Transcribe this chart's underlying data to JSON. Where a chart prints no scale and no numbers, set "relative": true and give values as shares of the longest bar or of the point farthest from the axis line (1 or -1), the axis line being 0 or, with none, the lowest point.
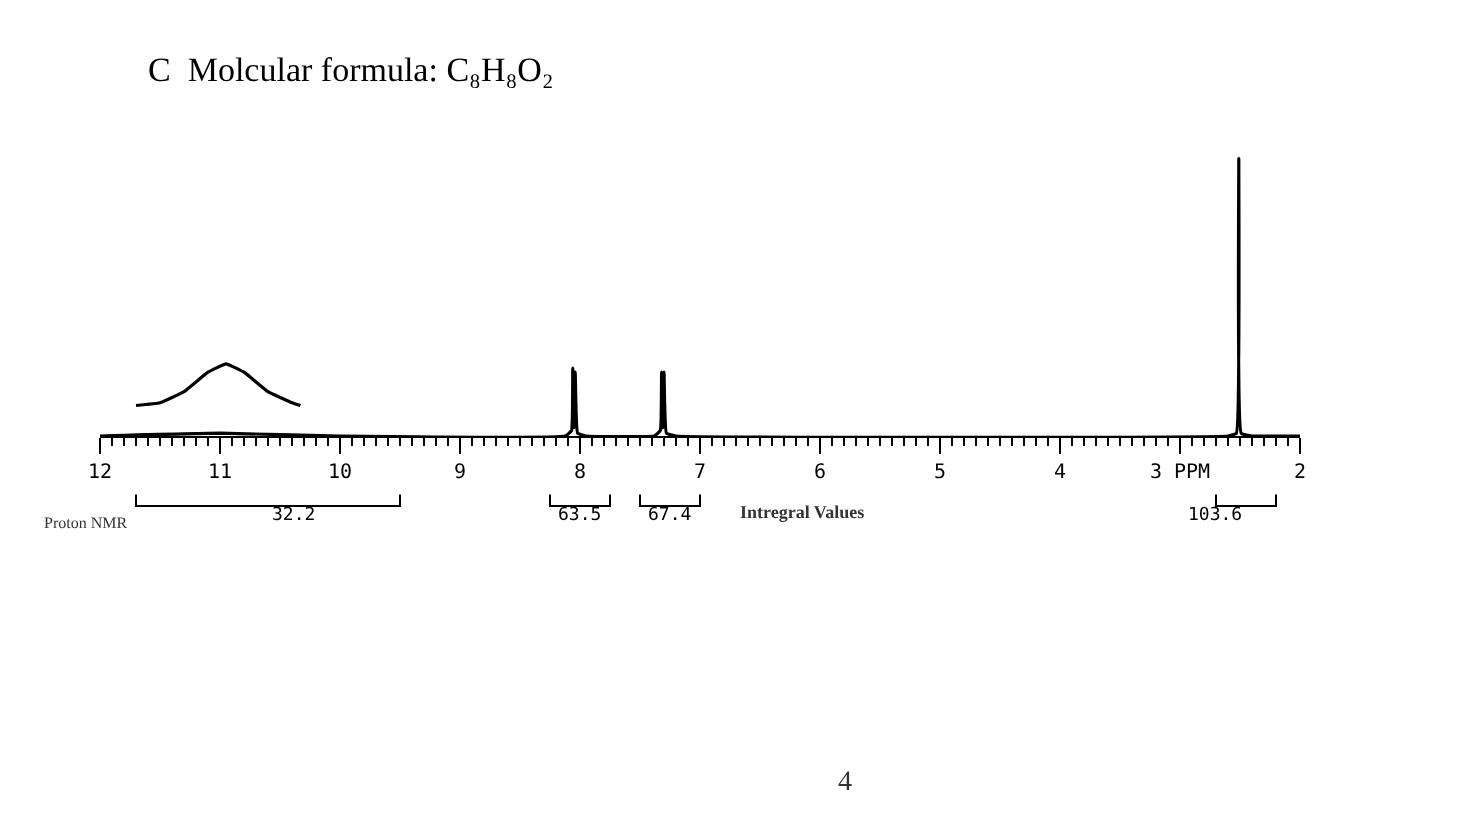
{
  "chart_data": {
    "type": "line",
    "title": "C  Molcular formula: C₈H₈O₂",
    "relative": true,
    "marker": "none",
    "xlim": [
      12,
      2
    ],
    "xticks": [
      12,
      11,
      10,
      9,
      8,
      7,
      6,
      5,
      4,
      {
        "value": 3,
        "label": "3 PPM"
      },
      2
    ],
    "series": [
      {
        "color": "#000000",
        "x": [
          12,
          11,
          10,
          8.12,
          8.07,
          8.06,
          8.05,
          8.04,
          8.02,
          7.95,
          7.38,
          7.33,
          7.32,
          7.31,
          7.3,
          7.28,
          7.2,
          2.6,
          2.53,
          2.51,
          2.49,
          2.4,
          2
        ],
        "values": [
          0,
          0.01,
          0,
          0,
          0.02,
          0.245,
          0.03,
          0.23,
          0.01,
          0,
          0,
          0.02,
          0.23,
          0.03,
          0.23,
          0.01,
          0,
          0,
          0.01,
          1,
          0.01,
          0,
          0
        ]
      },
      {
        "color": "#000000",
        "x": [
          11.7,
          11.5,
          11.3,
          11.1,
          10.95,
          10.8,
          10.6,
          10.4,
          10.33
        ],
        "values": [
          0.11,
          0.12,
          0.16,
          0.23,
          0.26,
          0.23,
          0.16,
          0.12,
          0.11
        ]
      }
    ],
    "annotations": [
      "32.2",
      "63.5",
      "67.4",
      "103.6",
      "Intregral Values",
      "Proton NMR",
      "4"
    ]
  }
}
